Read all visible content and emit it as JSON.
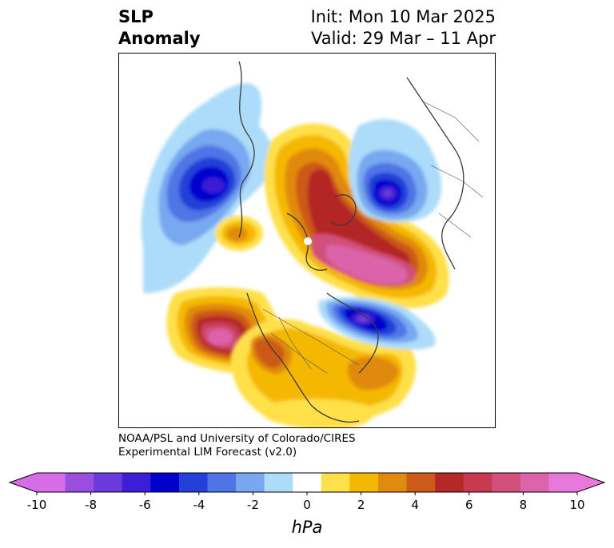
{
  "title": {
    "field_line1": "SLP",
    "field_line2": "Anomaly",
    "init": "Init: Mon 10 Mar 2025",
    "valid": "Valid: 29 Mar – 11 Apr"
  },
  "credit": {
    "line1": "NOAA/PSL and University of Colorado/CIRES",
    "line2": "Experimental LIM Forecast (v2.0)"
  },
  "colorbar": {
    "units": "hPa",
    "tick_labels": [
      "-10",
      "-8",
      "-6",
      "-4",
      "-2",
      "0",
      "2",
      "4",
      "6",
      "8",
      "10"
    ],
    "colors": [
      "#d66ce6",
      "#9b4fe0",
      "#6a3bdc",
      "#3a1fd6",
      "#0000cc",
      "#2440d8",
      "#4f74e6",
      "#78a8f0",
      "#acdcfa",
      "#ffffff",
      "#ffe04a",
      "#f5b800",
      "#e08a10",
      "#cc5a18",
      "#b42828",
      "#c83a50",
      "#d2507a",
      "#dc64aa",
      "#e878dc"
    ],
    "extend_low_color": "#d66ce6",
    "extend_high_color": "#e878dc"
  }
}
